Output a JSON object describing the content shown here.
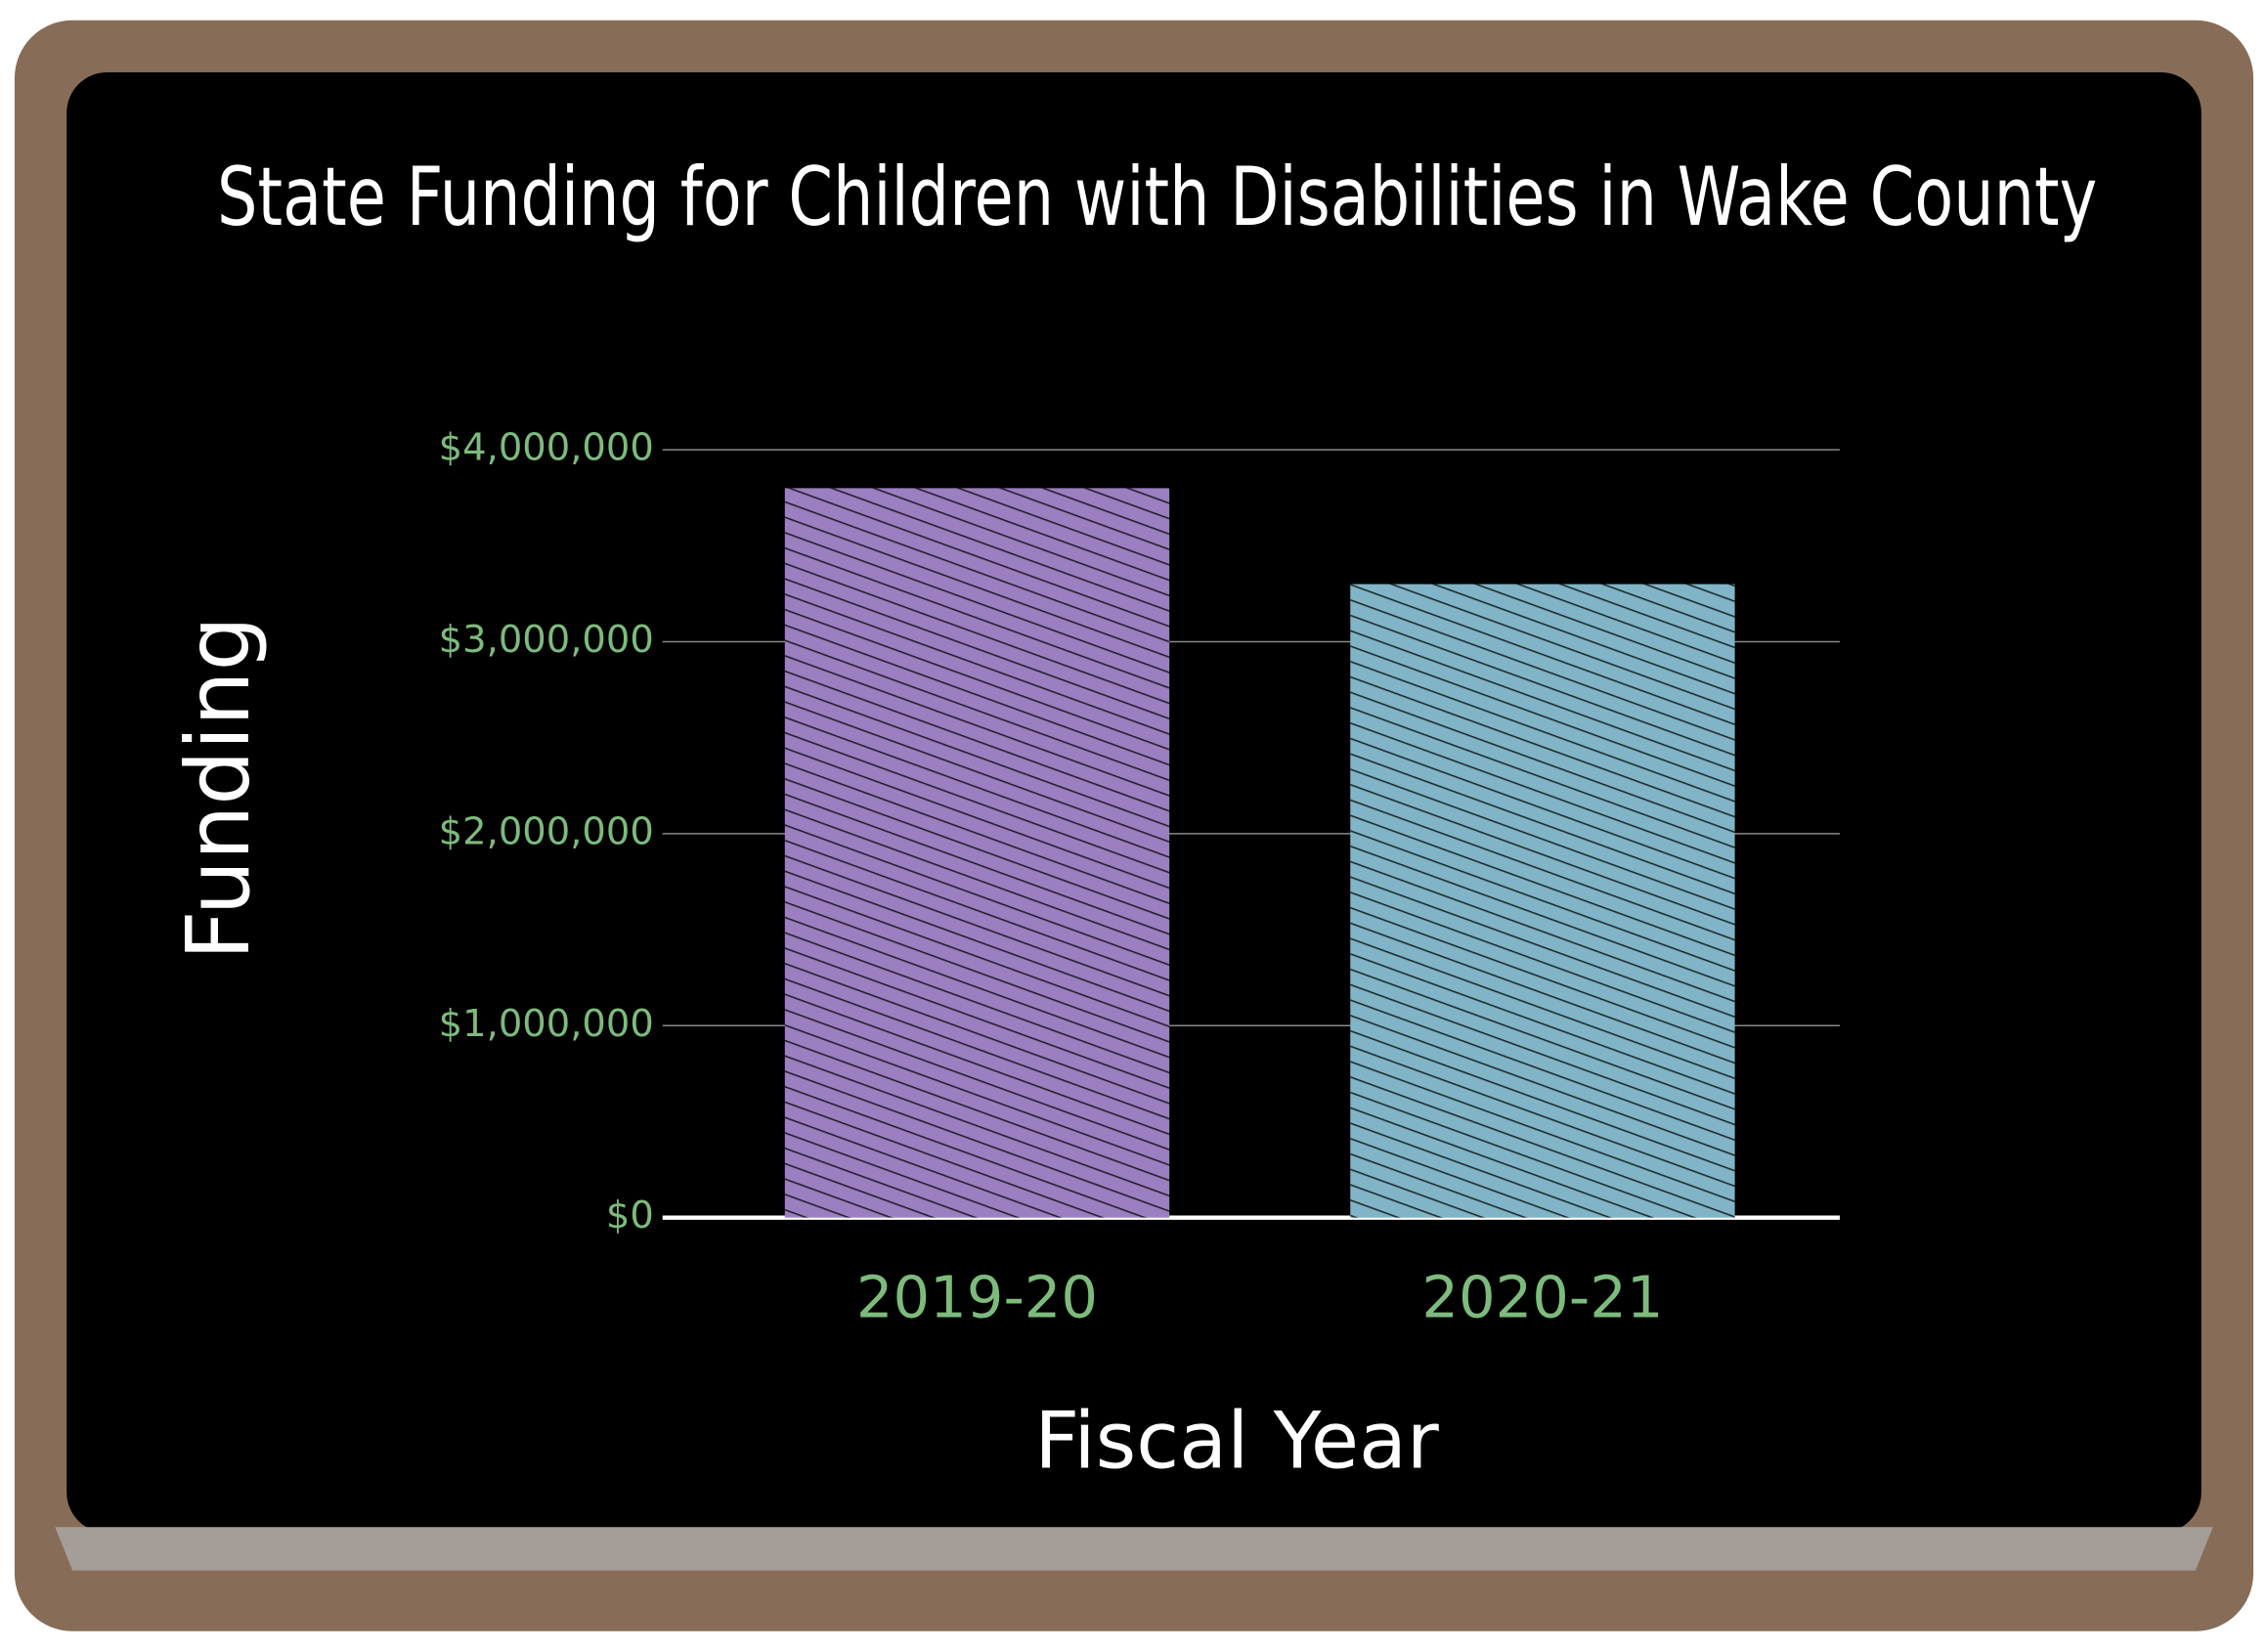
{
  "chart_data": {
    "type": "bar",
    "title": "State Funding for Children with Disabilities in Wake County",
    "x_label": "Fiscal Year",
    "y_label": "Funding",
    "categories": [
      "2019-20",
      "2020-21"
    ],
    "values": [
      3800000,
      3300000
    ],
    "colors": [
      "#9b7fc0",
      "#80b4c6"
    ],
    "ylim": [
      0,
      4000000
    ],
    "yticks": [
      {
        "value": 0,
        "label": "$0"
      },
      {
        "value": 1000000,
        "label": "$1,000,000"
      },
      {
        "value": 2000000,
        "label": "$2,000,000"
      },
      {
        "value": 3000000,
        "label": "$3,000,000"
      },
      {
        "value": 4000000,
        "label": "$4,000,000"
      }
    ],
    "grid": true
  }
}
